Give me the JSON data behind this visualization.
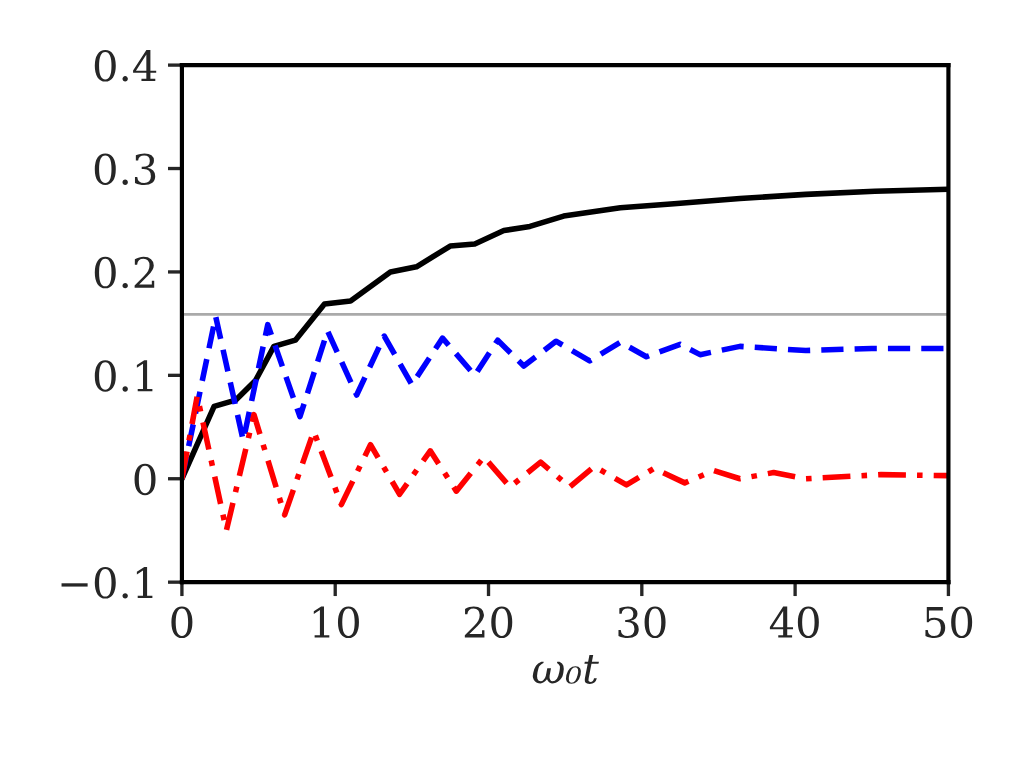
{
  "chart_data": {
    "type": "line",
    "xlabel": "ω₀t",
    "xlim": [
      0,
      50
    ],
    "ylim": [
      -0.1,
      0.4
    ],
    "xticks": [
      0,
      10,
      20,
      30,
      40,
      50
    ],
    "yticks": [
      {
        "value": -0.1,
        "label": "−0.1"
      },
      0,
      0.1,
      0.2,
      0.3,
      0.4
    ],
    "grid": false,
    "legend": false,
    "ref_lines": [
      {
        "axis": "y",
        "value": 0.159,
        "color": "#aaaaaa",
        "line_style": "solid"
      }
    ],
    "series": [
      {
        "color": "#000000",
        "line_style": "solid",
        "x": [
          0,
          2.1,
          3.5,
          4.8,
          6.0,
          7.4,
          9.3,
          11,
          13.6,
          15.3,
          17.5,
          19.1,
          21,
          22.7,
          24.9,
          28.6,
          32.1,
          36.4,
          40.7,
          45.2,
          50
        ],
        "values": [
          0,
          0.07,
          0.076,
          0.095,
          0.128,
          0.134,
          0.169,
          0.172,
          0.2,
          0.205,
          0.225,
          0.227,
          0.24,
          0.244,
          0.254,
          0.262,
          0.266,
          0.271,
          0.275,
          0.278,
          0.28
        ]
      },
      {
        "color": "#0000ff",
        "line_style": "dashed",
        "x": [
          0,
          2.2,
          4.0,
          5.6,
          7.7,
          9.5,
          11.4,
          13.2,
          15.0,
          17.0,
          19.1,
          20.6,
          22.3,
          24.4,
          26.6,
          28.6,
          30.3,
          32.5,
          33.8,
          36.4,
          40.7,
          45,
          50
        ],
        "values": [
          0,
          0.157,
          0.037,
          0.149,
          0.06,
          0.143,
          0.081,
          0.138,
          0.091,
          0.136,
          0.1,
          0.134,
          0.109,
          0.133,
          0.114,
          0.132,
          0.118,
          0.13,
          0.12,
          0.128,
          0.124,
          0.126,
          0.126
        ]
      },
      {
        "color": "#ff0000",
        "line_style": "dashdot",
        "x": [
          0,
          1.0,
          2.9,
          4.7,
          6.7,
          8.6,
          10.4,
          12.3,
          14.2,
          16.2,
          17.9,
          19.7,
          21.4,
          23.4,
          25.3,
          26.9,
          29,
          30.8,
          32.8,
          34.7,
          36.4,
          38.6,
          40.7,
          45.6,
          50
        ],
        "values": [
          0,
          0.08,
          -0.05,
          0.062,
          -0.035,
          0.046,
          -0.025,
          0.033,
          -0.015,
          0.027,
          -0.012,
          0.021,
          -0.008,
          0.016,
          -0.008,
          0.012,
          -0.006,
          0.01,
          -0.004,
          0.008,
          0,
          0.006,
          0,
          0.004,
          0.003
        ]
      }
    ]
  }
}
